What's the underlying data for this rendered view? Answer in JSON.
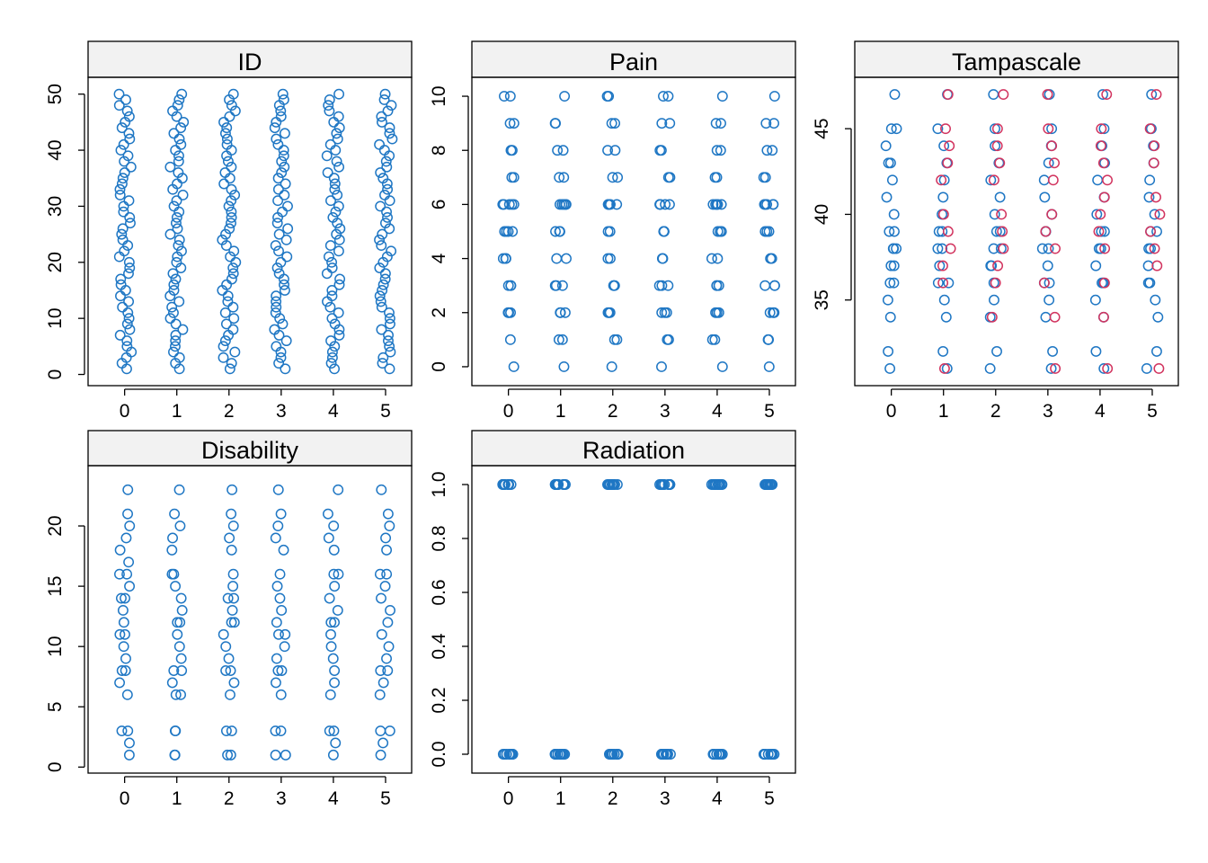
{
  "chart_data": [
    {
      "type": "scatter",
      "title": "ID",
      "x_ticks": [
        "0",
        "1",
        "2",
        "3",
        "4",
        "5"
      ],
      "y_ticks": [
        "0",
        "10",
        "20",
        "30",
        "40",
        "50"
      ],
      "ylim": [
        -2,
        53
      ],
      "grid": false,
      "points_per_imputation": "IDs 1-50 at each imputation 0-5, jittered horizontally",
      "series": [
        {
          "color": "#1f77c4",
          "values_by_x": {
            "0": [
              1,
              2,
              3,
              4,
              5,
              6,
              7,
              8,
              9,
              10,
              11,
              12,
              13,
              14,
              15,
              16,
              17,
              18,
              19,
              20,
              21,
              22,
              23,
              24,
              25,
              26,
              27,
              28,
              29,
              30,
              31,
              32,
              33,
              34,
              35,
              36,
              37,
              38,
              39,
              40,
              41,
              42,
              43,
              44,
              45,
              46,
              47,
              48,
              49,
              50
            ],
            "1": [
              1,
              2,
              3,
              4,
              5,
              6,
              7,
              8,
              9,
              10,
              11,
              12,
              13,
              14,
              15,
              16,
              17,
              18,
              19,
              20,
              21,
              22,
              23,
              24,
              25,
              26,
              27,
              28,
              29,
              30,
              31,
              32,
              33,
              34,
              35,
              36,
              37,
              38,
              39,
              40,
              41,
              42,
              43,
              44,
              45,
              46,
              47,
              48,
              49,
              50
            ],
            "2": [
              1,
              2,
              3,
              4,
              5,
              6,
              7,
              8,
              9,
              10,
              11,
              12,
              13,
              14,
              15,
              16,
              17,
              18,
              19,
              20,
              21,
              22,
              23,
              24,
              25,
              26,
              27,
              28,
              29,
              30,
              31,
              32,
              33,
              34,
              35,
              36,
              37,
              38,
              39,
              40,
              41,
              42,
              43,
              44,
              45,
              46,
              47,
              48,
              49,
              50
            ],
            "3": [
              1,
              2,
              3,
              4,
              5,
              6,
              7,
              8,
              9,
              10,
              11,
              12,
              13,
              14,
              15,
              16,
              17,
              18,
              19,
              20,
              21,
              22,
              23,
              24,
              25,
              26,
              27,
              28,
              29,
              30,
              31,
              32,
              33,
              34,
              35,
              36,
              37,
              38,
              39,
              40,
              41,
              42,
              43,
              44,
              45,
              46,
              47,
              48,
              49,
              50
            ],
            "4": [
              1,
              2,
              3,
              4,
              5,
              6,
              7,
              8,
              9,
              10,
              11,
              12,
              13,
              14,
              15,
              16,
              17,
              18,
              19,
              20,
              21,
              22,
              23,
              24,
              25,
              26,
              27,
              28,
              29,
              30,
              31,
              32,
              33,
              34,
              35,
              36,
              37,
              38,
              39,
              40,
              41,
              42,
              43,
              44,
              45,
              46,
              47,
              48,
              49,
              50
            ],
            "5": [
              1,
              2,
              3,
              4,
              5,
              6,
              7,
              8,
              9,
              10,
              11,
              12,
              13,
              14,
              15,
              16,
              17,
              18,
              19,
              20,
              21,
              22,
              23,
              24,
              25,
              26,
              27,
              28,
              29,
              30,
              31,
              32,
              33,
              34,
              35,
              36,
              37,
              38,
              39,
              40,
              41,
              42,
              43,
              44,
              45,
              46,
              47,
              48,
              49,
              50
            ]
          }
        }
      ]
    },
    {
      "type": "scatter",
      "title": "Pain",
      "x_ticks": [
        "0",
        "1",
        "2",
        "3",
        "4",
        "5"
      ],
      "y_ticks": [
        "0",
        "2",
        "4",
        "6",
        "8",
        "10"
      ],
      "ylim": [
        -0.7,
        10.7
      ],
      "grid": false,
      "series": [
        {
          "color": "#1f77c4",
          "values_by_x": {
            "0": [
              0,
              1,
              2,
              2,
              2,
              3,
              3,
              3,
              4,
              4,
              4,
              5,
              5,
              5,
              5,
              6,
              6,
              6,
              6,
              6,
              7,
              7,
              8,
              8,
              9,
              9,
              10,
              10
            ],
            "1": [
              0,
              1,
              1,
              2,
              2,
              2,
              3,
              3,
              3,
              4,
              4,
              5,
              5,
              5,
              6,
              6,
              6,
              6,
              6,
              7,
              7,
              8,
              8,
              9,
              9,
              10
            ],
            "2": [
              0,
              1,
              1,
              2,
              2,
              2,
              3,
              3,
              3,
              4,
              4,
              5,
              5,
              6,
              6,
              6,
              6,
              6,
              7,
              7,
              8,
              8,
              9,
              9,
              10,
              10
            ],
            "3": [
              0,
              1,
              1,
              2,
              2,
              2,
              3,
              3,
              3,
              4,
              4,
              5,
              5,
              5,
              6,
              6,
              6,
              6,
              6,
              7,
              7,
              8,
              8,
              9,
              9,
              10,
              10
            ],
            "4": [
              0,
              1,
              1,
              2,
              2,
              2,
              3,
              3,
              3,
              4,
              4,
              5,
              5,
              5,
              6,
              6,
              6,
              6,
              6,
              7,
              7,
              8,
              8,
              9,
              9,
              10
            ],
            "5": [
              0,
              1,
              1,
              2,
              2,
              2,
              3,
              3,
              3,
              4,
              4,
              5,
              5,
              5,
              6,
              6,
              6,
              6,
              6,
              7,
              7,
              8,
              8,
              9,
              9,
              10
            ]
          }
        }
      ]
    },
    {
      "type": "scatter",
      "title": "Tampascale",
      "x_ticks": [
        "0",
        "1",
        "2",
        "3",
        "4",
        "5"
      ],
      "y_ticks": [
        "35",
        "40",
        "45"
      ],
      "ylim": [
        30,
        48
      ],
      "grid": false,
      "series": [
        {
          "color": "#1f77c4",
          "values_by_x": {
            "0": [
              31,
              32,
              34,
              35,
              36,
              36,
              37,
              37,
              38,
              38,
              38,
              39,
              39,
              40,
              41,
              42,
              43,
              43,
              44,
              45,
              45,
              47
            ],
            "1": [
              31,
              32,
              34,
              35,
              36,
              36,
              37,
              38,
              38,
              39,
              39,
              40,
              41,
              42,
              43,
              44,
              45,
              47
            ],
            "2": [
              31,
              32,
              34,
              35,
              36,
              37,
              37,
              38,
              38,
              39,
              39,
              40,
              41,
              42,
              43,
              44,
              45,
              47
            ],
            "3": [
              31,
              32,
              34,
              35,
              36,
              36,
              37,
              38,
              38,
              39,
              39,
              40,
              41,
              42,
              43,
              44,
              45,
              47
            ],
            "4": [
              31,
              32,
              34,
              35,
              36,
              36,
              37,
              38,
              38,
              39,
              39,
              40,
              41,
              42,
              43,
              44,
              45,
              47
            ],
            "5": [
              31,
              32,
              34,
              35,
              36,
              36,
              37,
              38,
              38,
              39,
              39,
              40,
              41,
              42,
              43,
              44,
              45,
              47
            ]
          }
        },
        {
          "color": "#d2345f",
          "values_by_x": {
            "0": [],
            "1": [
              31,
              36,
              37,
              38,
              39,
              40,
              42,
              43,
              44,
              45,
              47
            ],
            "2": [
              34,
              36,
              37,
              38,
              39,
              40,
              42,
              43,
              44,
              45,
              47
            ],
            "3": [
              31,
              34,
              36,
              38,
              39,
              40,
              42,
              43,
              44,
              45,
              47
            ],
            "4": [
              31,
              34,
              36,
              38,
              39,
              40,
              41,
              42,
              43,
              44,
              45,
              47
            ],
            "5": [
              31,
              37,
              38,
              39,
              40,
              41,
              43,
              44,
              45,
              47
            ]
          }
        }
      ]
    },
    {
      "type": "scatter",
      "title": "Disability",
      "x_ticks": [
        "0",
        "1",
        "2",
        "3",
        "4",
        "5"
      ],
      "y_ticks": [
        "0",
        "5",
        "10",
        "15",
        "20"
      ],
      "ylim": [
        -0.5,
        25
      ],
      "grid": false,
      "series": [
        {
          "color": "#1f77c4",
          "values_by_x": {
            "0": [
              1,
              2,
              3,
              3,
              6,
              7,
              8,
              8,
              9,
              10,
              11,
              11,
              12,
              13,
              14,
              14,
              15,
              16,
              16,
              17,
              18,
              19,
              20,
              21,
              23
            ],
            "1": [
              1,
              1,
              3,
              3,
              6,
              6,
              7,
              8,
              8,
              9,
              10,
              11,
              12,
              12,
              13,
              14,
              15,
              16,
              16,
              18,
              19,
              20,
              21,
              23
            ],
            "2": [
              1,
              1,
              3,
              3,
              6,
              7,
              8,
              8,
              9,
              10,
              11,
              12,
              12,
              13,
              14,
              14,
              15,
              16,
              18,
              19,
              20,
              21,
              23
            ],
            "3": [
              1,
              1,
              3,
              3,
              6,
              7,
              8,
              8,
              9,
              10,
              11,
              11,
              12,
              13,
              14,
              15,
              16,
              18,
              19,
              20,
              21,
              23
            ],
            "4": [
              1,
              2,
              3,
              3,
              6,
              7,
              8,
              9,
              10,
              11,
              12,
              12,
              13,
              14,
              15,
              16,
              16,
              18,
              19,
              20,
              21,
              23
            ],
            "5": [
              1,
              2,
              3,
              3,
              6,
              7,
              8,
              8,
              9,
              10,
              11,
              12,
              13,
              14,
              15,
              16,
              16,
              18,
              19,
              20,
              21,
              23
            ]
          }
        }
      ]
    },
    {
      "type": "scatter",
      "title": "Radiation",
      "x_ticks": [
        "0",
        "1",
        "2",
        "3",
        "4",
        "5"
      ],
      "y_ticks": [
        "0.0",
        "0.2",
        "0.4",
        "0.6",
        "0.8",
        "1.0"
      ],
      "ylim": [
        -0.07,
        1.07
      ],
      "grid": false,
      "series": [
        {
          "color": "#1f77c4",
          "values_by_x": {
            "0": [
              0,
              0,
              0,
              0,
              0,
              0,
              0,
              0,
              0,
              0,
              1,
              1,
              1,
              1,
              1,
              1,
              1,
              1,
              1,
              1
            ],
            "1": [
              0,
              0,
              0,
              0,
              0,
              0,
              0,
              0,
              0,
              0,
              1,
              1,
              1,
              1,
              1,
              1,
              1,
              1,
              1,
              1
            ],
            "2": [
              0,
              0,
              0,
              0,
              0,
              0,
              0,
              0,
              0,
              0,
              1,
              1,
              1,
              1,
              1,
              1,
              1,
              1,
              1,
              1
            ],
            "3": [
              0,
              0,
              0,
              0,
              0,
              0,
              0,
              0,
              0,
              0,
              1,
              1,
              1,
              1,
              1,
              1,
              1,
              1,
              1,
              1
            ],
            "4": [
              0,
              0,
              0,
              0,
              0,
              0,
              0,
              0,
              0,
              0,
              1,
              1,
              1,
              1,
              1,
              1,
              1,
              1,
              1,
              1
            ],
            "5": [
              0,
              0,
              0,
              0,
              0,
              0,
              0,
              0,
              0,
              0,
              1,
              1,
              1,
              1,
              1,
              1,
              1,
              1,
              1,
              1
            ]
          }
        }
      ]
    }
  ]
}
